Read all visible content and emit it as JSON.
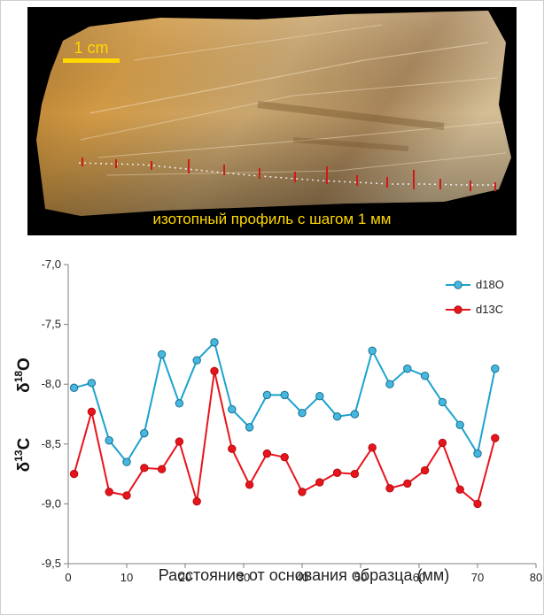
{
  "photo": {
    "scale_bar_label": "1 cm",
    "caption": "изотопный профиль с шагом 1 мм"
  },
  "chart_data": {
    "type": "line",
    "xlabel": "Расстояние от основания образца (мм)",
    "ylabel_top": {
      "delta": "δ",
      "sup": "18",
      "element": "O"
    },
    "ylabel_bottom": {
      "delta": "δ",
      "sup": "13",
      "element": "C"
    },
    "xlim": [
      0,
      80
    ],
    "ylim": [
      -9.5,
      -7.0
    ],
    "xticks": [
      0,
      10,
      20,
      30,
      40,
      50,
      60,
      70,
      80
    ],
    "yticks": [
      -7.0,
      -7.5,
      -8.0,
      -8.5,
      -9.0,
      -9.5
    ],
    "ytick_labels": [
      "-7,0",
      "-7,5",
      "-8,0",
      "-8,5",
      "-9,0",
      "-9,5"
    ],
    "grid": false,
    "legend_position": "top-right",
    "series": [
      {
        "name": "d18O",
        "color": "#1ba3cf",
        "marker_fill": "#46b8e0",
        "x": [
          1,
          4,
          7,
          10,
          13,
          16,
          19,
          22,
          25,
          28,
          31,
          34,
          37,
          40,
          43,
          46,
          49,
          52,
          55,
          58,
          61,
          64,
          67,
          70,
          73
        ],
        "y": [
          -8.03,
          -7.99,
          -8.47,
          -8.65,
          -8.41,
          -7.75,
          -8.16,
          -7.8,
          -7.65,
          -8.21,
          -8.36,
          -8.09,
          -8.09,
          -8.24,
          -8.1,
          -8.27,
          -8.25,
          -7.72,
          -8.0,
          -7.87,
          -7.93,
          -8.15,
          -8.34,
          -8.58,
          -7.87
        ]
      },
      {
        "name": "d13C",
        "color": "#e8141c",
        "marker_fill": "#e8141c",
        "x": [
          1,
          4,
          7,
          10,
          13,
          16,
          19,
          22,
          25,
          28,
          31,
          34,
          37,
          40,
          43,
          46,
          49,
          52,
          55,
          58,
          61,
          64,
          67,
          70,
          73
        ],
        "y": [
          -8.75,
          -8.23,
          -8.9,
          -8.93,
          -8.7,
          -8.71,
          -8.48,
          -8.98,
          -7.89,
          -8.54,
          -8.84,
          -8.58,
          -8.61,
          -8.9,
          -8.82,
          -8.74,
          -8.75,
          -8.53,
          -8.87,
          -8.83,
          -8.72,
          -8.49,
          -8.88,
          -9.0,
          -8.45
        ]
      }
    ]
  }
}
